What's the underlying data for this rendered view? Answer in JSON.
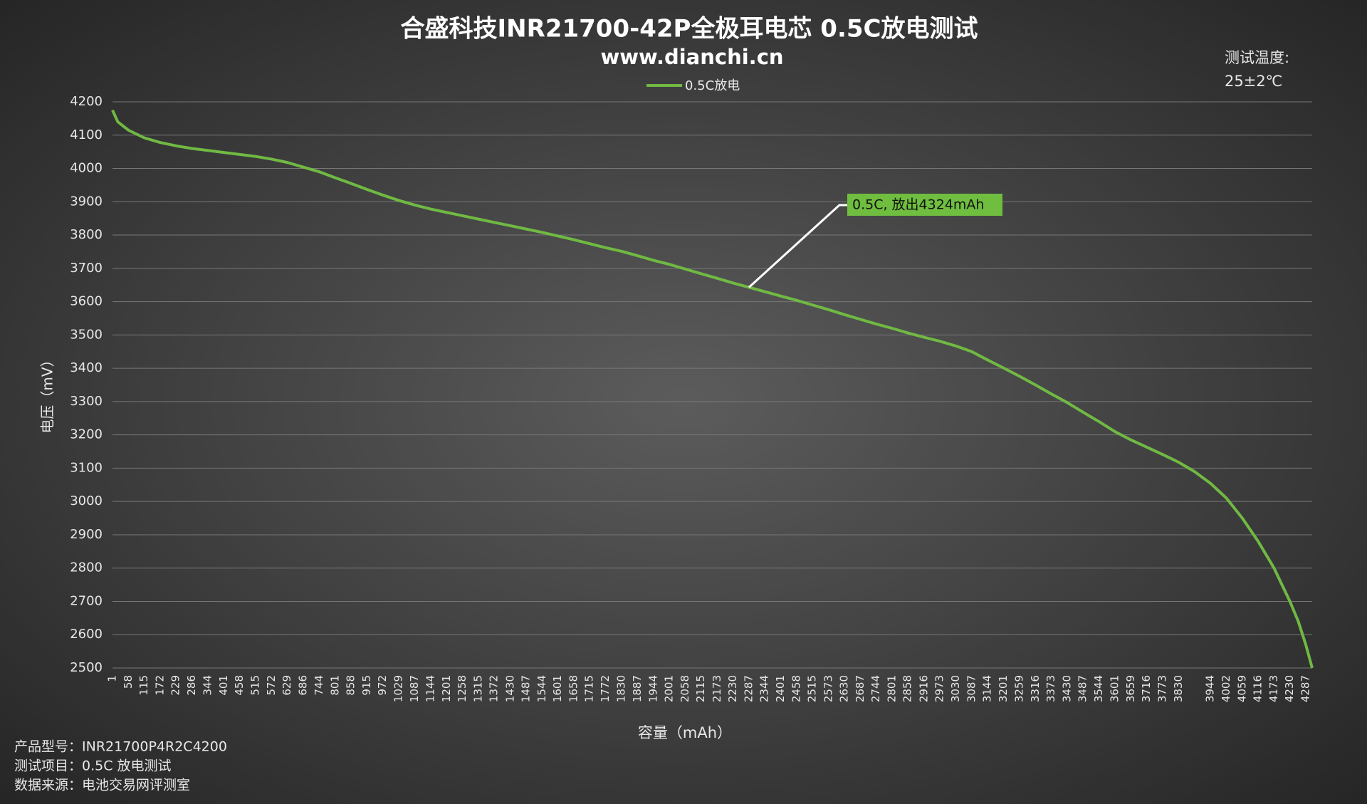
{
  "chart_data": {
    "type": "line",
    "title": "合盛科技INR21700-42P全极耳电芯 0.5C放电测试",
    "subtitle": "www.dianchi.cn",
    "note_title": "测试温度:",
    "note_value": "25±2℃",
    "ylabel": "电压（mV）",
    "xlabel": "容量（mAh）",
    "annotation": "0.5C, 放出4324mAh",
    "footer": [
      "产品型号：INR21700P4R2C4200",
      "测试项目：0.5C 放电测试",
      "数据来源：电池交易网评测室"
    ],
    "xlim": [
      1,
      4310
    ],
    "ylim": [
      2500,
      4200
    ],
    "yticks": [
      2500,
      2600,
      2700,
      2800,
      2900,
      3000,
      3100,
      3200,
      3300,
      3400,
      3500,
      3600,
      3700,
      3800,
      3900,
      4000,
      4100,
      4200
    ],
    "xticks": [
      1,
      58,
      115,
      172,
      229,
      286,
      344,
      401,
      458,
      515,
      572,
      629,
      686,
      744,
      801,
      858,
      915,
      972,
      1029,
      1087,
      1144,
      1201,
      1258,
      1315,
      1372,
      1430,
      1487,
      1544,
      1601,
      1658,
      1715,
      1772,
      1830,
      1887,
      1944,
      2001,
      2058,
      2115,
      2173,
      2230,
      2287,
      2344,
      2401,
      2458,
      2515,
      2573,
      2630,
      2687,
      2744,
      2801,
      2858,
      2916,
      2973,
      3030,
      3087,
      3144,
      3201,
      3259,
      3316,
      3373,
      3430,
      3487,
      3544,
      3601,
      3659,
      3716,
      3773,
      3830,
      3944,
      4002,
      4059,
      4116,
      4173,
      4230,
      4287
    ],
    "grid": true,
    "series": [
      {
        "name": "0.5C放电",
        "color": "#70b943",
        "x": [
          1,
          20,
          58,
          115,
          172,
          229,
          286,
          344,
          401,
          458,
          515,
          572,
          629,
          686,
          744,
          801,
          858,
          915,
          972,
          1029,
          1087,
          1144,
          1201,
          1258,
          1315,
          1372,
          1430,
          1487,
          1544,
          1601,
          1658,
          1715,
          1772,
          1830,
          1887,
          1944,
          2001,
          2058,
          2115,
          2173,
          2230,
          2287,
          2344,
          2401,
          2458,
          2515,
          2573,
          2630,
          2687,
          2744,
          2801,
          2858,
          2916,
          2973,
          3030,
          3087,
          3144,
          3201,
          3259,
          3316,
          3373,
          3430,
          3487,
          3544,
          3601,
          3659,
          3716,
          3773,
          3830,
          3887,
          3944,
          4002,
          4059,
          4116,
          4173,
          4230,
          4260,
          4287,
          4310
        ],
        "values": [
          4175,
          4140,
          4115,
          4092,
          4078,
          4068,
          4060,
          4054,
          4048,
          4042,
          4036,
          4028,
          4018,
          4004,
          3990,
          3972,
          3955,
          3937,
          3920,
          3904,
          3890,
          3878,
          3868,
          3858,
          3848,
          3838,
          3828,
          3818,
          3808,
          3797,
          3786,
          3774,
          3762,
          3751,
          3738,
          3724,
          3712,
          3698,
          3684,
          3670,
          3656,
          3643,
          3630,
          3617,
          3604,
          3590,
          3576,
          3561,
          3547,
          3533,
          3520,
          3506,
          3493,
          3481,
          3467,
          3450,
          3425,
          3401,
          3376,
          3350,
          3323,
          3297,
          3268,
          3240,
          3210,
          3185,
          3163,
          3141,
          3118,
          3090,
          3055,
          3010,
          2950,
          2880,
          2800,
          2700,
          2640,
          2570,
          2500
        ]
      }
    ]
  }
}
